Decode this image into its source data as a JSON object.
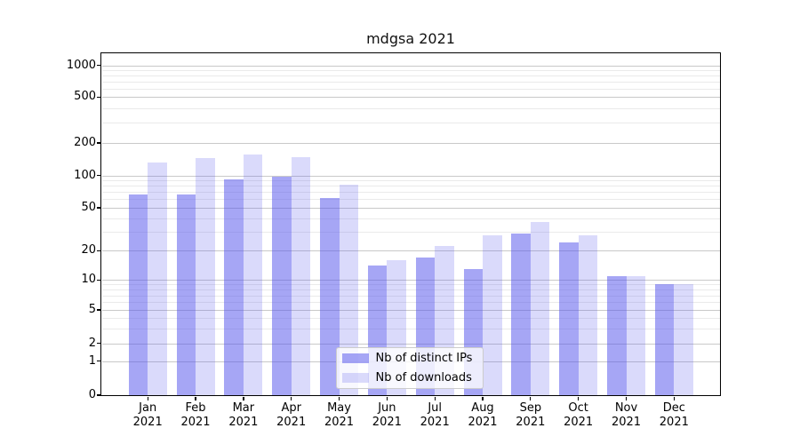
{
  "chart_data": {
    "type": "bar",
    "title": "mdgsa 2021",
    "categories": [
      "Jan 2021",
      "Feb 2021",
      "Mar 2021",
      "Apr 2021",
      "May 2021",
      "Jun 2021",
      "Jul 2021",
      "Aug 2021",
      "Sep 2021",
      "Oct 2021",
      "Nov 2021",
      "Dec 2021"
    ],
    "x_tick_months": [
      "Jan",
      "Feb",
      "Mar",
      "Apr",
      "May",
      "Jun",
      "Jul",
      "Aug",
      "Sep",
      "Oct",
      "Nov",
      "Dec"
    ],
    "x_tick_year": "2021",
    "series": [
      {
        "name": "Nb of distinct IPs",
        "values": [
          66,
          66,
          93,
          97,
          62,
          14,
          17,
          13,
          29,
          24,
          11,
          9
        ],
        "color": "#a6a6f1",
        "fill": "rgba(85,85,235,0.52)"
      },
      {
        "name": "Nb of downloads",
        "values": [
          132,
          145,
          155,
          149,
          82,
          16,
          22,
          28,
          37,
          28,
          11,
          9
        ],
        "color": "#d9d9f9",
        "fill": "rgba(85,85,235,0.22)"
      }
    ],
    "yscale": "symlog",
    "ylim": [
      0,
      1300
    ],
    "y_tick_labels": [
      "0",
      "1",
      "2",
      "5",
      "10",
      "20",
      "50",
      "100",
      "200",
      "500",
      "1000"
    ],
    "y_tick_values": [
      0,
      1,
      2,
      5,
      10,
      20,
      50,
      100,
      200,
      500,
      1000
    ],
    "y_minor_values": [
      3,
      4,
      6,
      7,
      8,
      9,
      30,
      40,
      60,
      70,
      80,
      90,
      300,
      400,
      600,
      700,
      800,
      900
    ],
    "grid": true,
    "legend": {
      "labels": [
        "Nb of distinct IPs",
        "Nb of downloads"
      ],
      "location": "lower center"
    },
    "colors": {
      "major_grid": "#c9c9c9",
      "minor_grid": "#eaeaea",
      "spine": "#000000",
      "text": "#000000",
      "background": "#ffffff"
    }
  }
}
